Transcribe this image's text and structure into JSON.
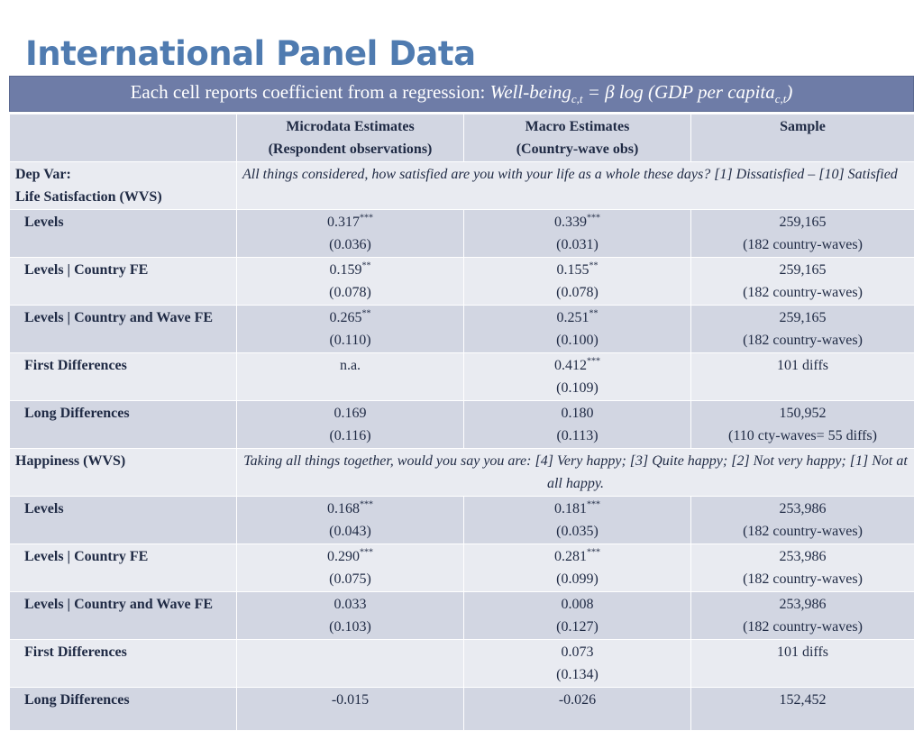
{
  "title": "International Panel Data",
  "banner": {
    "prefix": "Each cell reports coefficient from a regression: ",
    "wellbeing": "Well-being",
    "wb_sub": "c,t",
    "middle": " = β log (GDP per capita",
    "gdp_sub": "c,t",
    "close": ")"
  },
  "headers": {
    "micro_line1": "Microdata Estimates",
    "micro_line2": "(Respondent observations)",
    "macro_line1": "Macro Estimates",
    "macro_line2": "(Country-wave obs)",
    "sample": "Sample"
  },
  "sections": [
    {
      "label_line1": "Dep Var:",
      "label_line2": "Life Satisfaction (WVS)",
      "description": "All things considered, how satisfied are you with your life as a whole these days?  [1] Dissatisfied – [10] Satisfied",
      "rows": [
        {
          "label": "Levels",
          "micro": "0.317",
          "micro_stars": "***",
          "micro_se": "(0.036)",
          "macro": "0.339",
          "macro_stars": "***",
          "macro_se": "(0.031)",
          "sample": "259,165",
          "sample_note": "(182 country-waves)"
        },
        {
          "label": "Levels | Country FE",
          "micro": "0.159",
          "micro_stars": "**",
          "micro_se": "(0.078)",
          "macro": "0.155",
          "macro_stars": "**",
          "macro_se": "(0.078)",
          "sample": "259,165",
          "sample_note": "(182 country-waves)"
        },
        {
          "label": "Levels | Country and Wave FE",
          "micro": "0.265",
          "micro_stars": "**",
          "micro_se": "(0.110)",
          "macro": "0.251",
          "macro_stars": "**",
          "macro_se": "(0.100)",
          "sample": "259,165",
          "sample_note": "(182 country-waves)"
        },
        {
          "label": "First Differences",
          "micro": "n.a.",
          "micro_stars": "",
          "micro_se": "",
          "macro": "0.412",
          "macro_stars": "***",
          "macro_se": "(0.109)",
          "sample": "101 diffs",
          "sample_note": ""
        },
        {
          "label": "Long Differences",
          "micro": "0.169",
          "micro_stars": "",
          "micro_se": "(0.116)",
          "macro": "0.180",
          "macro_stars": "",
          "macro_se": "(0.113)",
          "sample": "150,952",
          "sample_note": "(110 cty-waves= 55 diffs)"
        }
      ]
    },
    {
      "label_line1": "Happiness (WVS)",
      "label_line2": "",
      "description": "Taking all things together, would you say you are: [4] Very happy; [3] Quite happy; [2] Not very happy; [1] Not at all happy.",
      "rows": [
        {
          "label": "Levels",
          "micro": "0.168",
          "micro_stars": "***",
          "micro_se": "(0.043)",
          "macro": "0.181",
          "macro_stars": "***",
          "macro_se": "(0.035)",
          "sample": "253,986",
          "sample_note": "(182 country-waves)"
        },
        {
          "label": "Levels | Country FE",
          "micro": "0.290",
          "micro_stars": "***",
          "micro_se": "(0.075)",
          "macro": "0.281",
          "macro_stars": "***",
          "macro_se": "(0.099)",
          "sample": "253,986",
          "sample_note": "(182 country-waves)"
        },
        {
          "label": "Levels | Country and Wave FE",
          "micro": "0.033",
          "micro_stars": "",
          "micro_se": "(0.103)",
          "macro": "0.008",
          "macro_stars": "",
          "macro_se": "(0.127)",
          "sample": "253,986",
          "sample_note": "(182 country-waves)"
        },
        {
          "label": "First Differences",
          "micro": "",
          "micro_stars": "",
          "micro_se": "",
          "macro": "0.073",
          "macro_stars": "",
          "macro_se": "(0.134)",
          "sample": "101 diffs",
          "sample_note": ""
        },
        {
          "label": "Long Differences",
          "micro": "-0.015",
          "micro_stars": "",
          "micro_se": "",
          "macro": "-0.026",
          "macro_stars": "",
          "macro_se": "",
          "sample": "152,452",
          "sample_note": ""
        }
      ]
    }
  ]
}
